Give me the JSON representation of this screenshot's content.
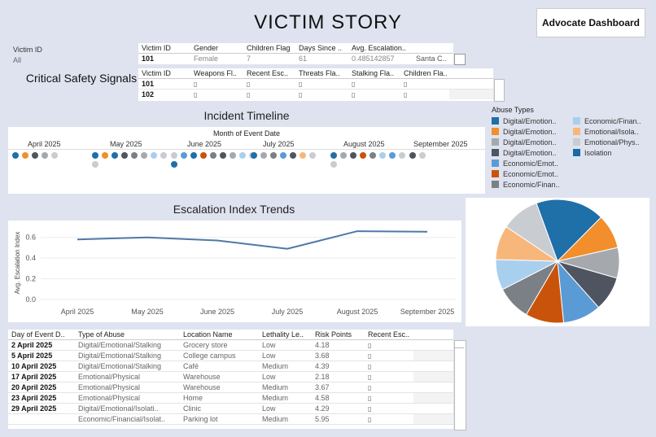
{
  "header": {
    "title": "VICTIM STORY",
    "advocate_button": "Advocate Dashboard"
  },
  "filter": {
    "label": "Victim ID",
    "value": "All"
  },
  "summary_table": {
    "columns": [
      "Victim ID",
      "Gender",
      "Children Flag",
      "Days Since ..",
      "Avg. Escalation.."
    ],
    "row": {
      "victim_id": "101",
      "gender": "Female",
      "children": "7",
      "days": "61",
      "escalation": "0.485142857",
      "extra": "Santa C.."
    }
  },
  "signals": {
    "title": "Critical Safety Signals",
    "columns": [
      "Victim ID",
      "Weapons Fl..",
      "Recent Esc..",
      "Threats Fla..",
      "Stalking Fla..",
      "Children Fla.."
    ],
    "rows": [
      {
        "id": "101"
      },
      {
        "id": "102"
      }
    ],
    "glyph": "▯"
  },
  "timeline": {
    "title": "Incident Timeline",
    "axis_title": "Month of Event Date",
    "months": [
      "April 2025",
      "May 2025",
      "June 2025",
      "July 2025",
      "August 2025",
      "September 2025"
    ]
  },
  "legend": {
    "title": "Abuse Types",
    "items": [
      {
        "label": "Digital/Emotion..",
        "color": "#1f6fa8"
      },
      {
        "label": "Digital/Emotion..",
        "color": "#f28e2b"
      },
      {
        "label": "Digital/Emotion..",
        "color": "#a5a9ae"
      },
      {
        "label": "Digital/Emotion..",
        "color": "#4f5560"
      },
      {
        "label": "Economic/Emot..",
        "color": "#5b9bd5"
      },
      {
        "label": "Economic/Emot..",
        "color": "#c9530a"
      },
      {
        "label": "Economic/Finan..",
        "color": "#7b7f86"
      },
      {
        "label": "Economic/Finan..",
        "color": "#a9cfee"
      },
      {
        "label": "Emotional/Isola..",
        "color": "#f7b77a"
      },
      {
        "label": "Emotional/Phys..",
        "color": "#c9ccd1"
      },
      {
        "label": "Isolation",
        "color": "#1a6aa3"
      }
    ]
  },
  "escalation": {
    "title": "Escalation Index Trends",
    "ylabel": "Avg. Escalation Index"
  },
  "chart_data": {
    "type": "line",
    "categories": [
      "April 2025",
      "May 2025",
      "June 2025",
      "July 2025",
      "August 2025",
      "September 2025"
    ],
    "values": [
      0.58,
      0.6,
      0.57,
      0.49,
      0.66,
      0.655
    ],
    "ylabel": "Avg. Escalation Index",
    "ylim": [
      0.0,
      0.7
    ],
    "yticks": [
      "0.6",
      "0.4",
      "0.2",
      "0.0"
    ],
    "color": "#4e79a7",
    "grid": true
  },
  "pie": {
    "slices": [
      {
        "value": 18,
        "color": "#1f6fa8"
      },
      {
        "value": 9,
        "color": "#f28e2b"
      },
      {
        "value": 8,
        "color": "#a5a9ae"
      },
      {
        "value": 9,
        "color": "#4f5560"
      },
      {
        "value": 10,
        "color": "#5b9bd5"
      },
      {
        "value": 10,
        "color": "#c9530a"
      },
      {
        "value": 9,
        "color": "#7b7f86"
      },
      {
        "value": 8,
        "color": "#a9cfee"
      },
      {
        "value": 9,
        "color": "#f7b77a"
      },
      {
        "value": 10,
        "color": "#c9ccd1"
      }
    ]
  },
  "detail_table": {
    "columns": [
      "Day of Event D..",
      "Type of Abuse",
      "Location Name",
      "Lethality Le..",
      "Risk Points",
      "Recent Esc.."
    ],
    "rows": [
      {
        "date": "2 April 2025",
        "type": "Digital/Emotional/Stalking",
        "location": "Grocery store",
        "lethality": "Low",
        "risk": "4.18"
      },
      {
        "date": "5 April 2025",
        "type": "Digital/Emotional/Stalking",
        "location": "College campus",
        "lethality": "Low",
        "risk": "3.68"
      },
      {
        "date": "10 April 2025",
        "type": "Digital/Emotional/Stalking",
        "location": "Café",
        "lethality": "Medium",
        "risk": "4.39"
      },
      {
        "date": "17 April 2025",
        "type": "Emotional/Physical",
        "location": "Warehouse",
        "lethality": "Low",
        "risk": "2.18"
      },
      {
        "date": "20 April 2025",
        "type": "Emotional/Physical",
        "location": "Warehouse",
        "lethality": "Medium",
        "risk": "3.67"
      },
      {
        "date": "23 April 2025",
        "type": "Emotional/Physical",
        "location": "Home",
        "lethality": "Medium",
        "risk": "4.58"
      },
      {
        "date": "29 April 2025",
        "type": "Digital/Emotional/Isolati..",
        "location": "Clinic",
        "lethality": "Low",
        "risk": "4.29"
      },
      {
        "date": "",
        "type": "Economic/Financial/Isolat..",
        "location": "Parking lot",
        "lethality": "Medium",
        "risk": "5.95"
      }
    ]
  }
}
